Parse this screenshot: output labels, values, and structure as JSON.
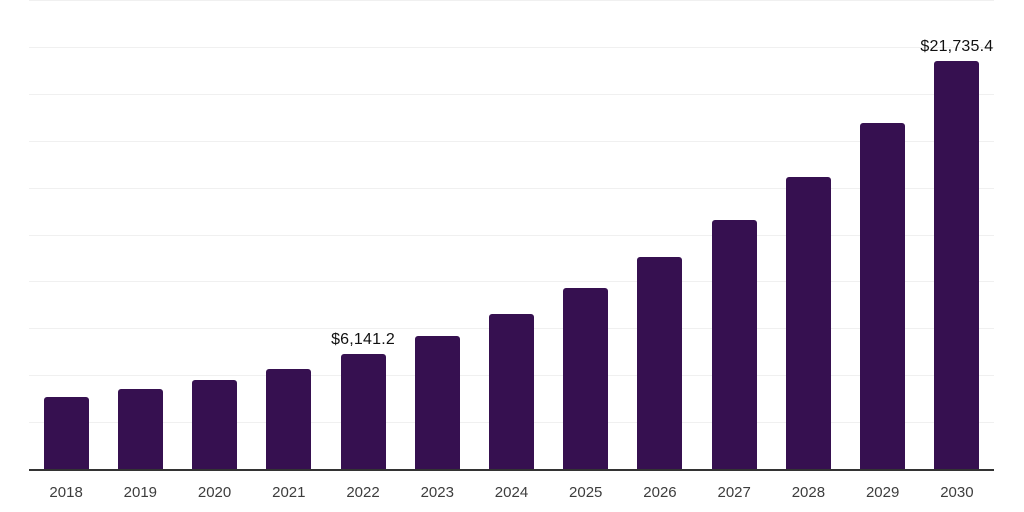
{
  "chart_data": {
    "type": "bar",
    "title": "",
    "xlabel": "",
    "ylabel": "",
    "categories": [
      "2018",
      "2019",
      "2020",
      "2021",
      "2022",
      "2023",
      "2024",
      "2025",
      "2026",
      "2027",
      "2028",
      "2029",
      "2030"
    ],
    "values": [
      3850,
      4250,
      4730,
      5320,
      6141.2,
      7090,
      8280,
      9660,
      11310,
      13290,
      15590,
      18450,
      21735.4
    ],
    "data_labels": {
      "2022": "$6,141.2",
      "2030": "$21,735.4"
    },
    "ylim": [
      0,
      25000
    ],
    "gridline_step": 2500,
    "grid": "horizontal-light",
    "legend": "none",
    "y_axis_labels_visible": false,
    "bar_color": "#361050",
    "gridline_color": "#f0f0f0",
    "axis_line_color": "#333333",
    "tick_label_color": "#3d3d3d",
    "data_label_color": "#111111"
  }
}
